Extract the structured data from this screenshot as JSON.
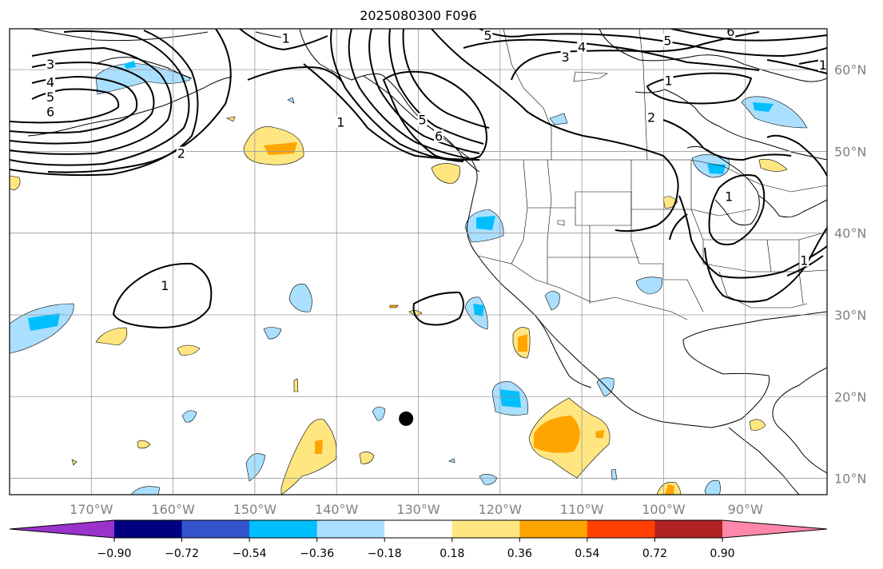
{
  "title": "2025080300 F096",
  "map": {
    "lon_range": [
      -180,
      -80
    ],
    "lat_range": [
      8,
      65
    ],
    "lon_ticks": [
      -170,
      -160,
      -150,
      -140,
      -130,
      -120,
      -110,
      -100,
      -90
    ],
    "lon_labels": [
      "170°W",
      "160°W",
      "150°W",
      "140°W",
      "130°W",
      "120°W",
      "110°W",
      "100°W",
      "90°W"
    ],
    "lat_ticks": [
      10,
      20,
      30,
      40,
      50,
      60
    ],
    "lat_labels": [
      "10°N",
      "20°N",
      "30°N",
      "40°N",
      "50°N",
      "60°N"
    ],
    "grid": true,
    "storm_marker": {
      "lon": -131.5,
      "lat": 17.3,
      "color": "#000000"
    }
  },
  "contours": {
    "color": "#000000",
    "labels": [
      {
        "text": "3",
        "lon": -175,
        "lat": 60.6
      },
      {
        "text": "4",
        "lon": -175,
        "lat": 58.4
      },
      {
        "text": "5",
        "lon": -175,
        "lat": 56.6
      },
      {
        "text": "6",
        "lon": -175,
        "lat": 54.8
      },
      {
        "text": "2",
        "lon": -159,
        "lat": 49.7
      },
      {
        "text": "1",
        "lon": -146.2,
        "lat": 63.8
      },
      {
        "text": "1",
        "lon": -139.5,
        "lat": 53.5
      },
      {
        "text": "1",
        "lon": -161,
        "lat": 33.5
      },
      {
        "text": "5",
        "lon": -129.5,
        "lat": 53.8
      },
      {
        "text": "6",
        "lon": -127.5,
        "lat": 51.8
      },
      {
        "text": "5",
        "lon": -121.5,
        "lat": 64.1
      },
      {
        "text": "3",
        "lon": -112,
        "lat": 61.5
      },
      {
        "text": "4",
        "lon": -110,
        "lat": 62.7
      },
      {
        "text": "5",
        "lon": -99.5,
        "lat": 63.5
      },
      {
        "text": "6",
        "lon": -91.8,
        "lat": 64.6
      },
      {
        "text": "1",
        "lon": -80.5,
        "lat": 60.5
      },
      {
        "text": "1",
        "lon": -99.4,
        "lat": 58.6
      },
      {
        "text": "2",
        "lon": -101.5,
        "lat": 54.1
      },
      {
        "text": "1",
        "lon": -92,
        "lat": 44.4
      },
      {
        "text": "1",
        "lon": -82.8,
        "lat": 36.6
      }
    ]
  },
  "colorbar": {
    "levels": [
      -0.9,
      -0.72,
      -0.54,
      -0.36,
      -0.18,
      0.18,
      0.36,
      0.54,
      0.72,
      0.9
    ],
    "tick_labels": [
      "−0.90",
      "−0.72",
      "−0.54",
      "−0.36",
      "−0.18",
      "0.18",
      "0.36",
      "0.54",
      "0.72",
      "0.90"
    ],
    "colors": [
      "#9933cc",
      "#000080",
      "#3355cc",
      "#00bfff",
      "#aadfff",
      "#ffffff",
      "#ffe680",
      "#ffa500",
      "#ff4000",
      "#b22222",
      "#ff88aa"
    ],
    "extend": "both"
  }
}
